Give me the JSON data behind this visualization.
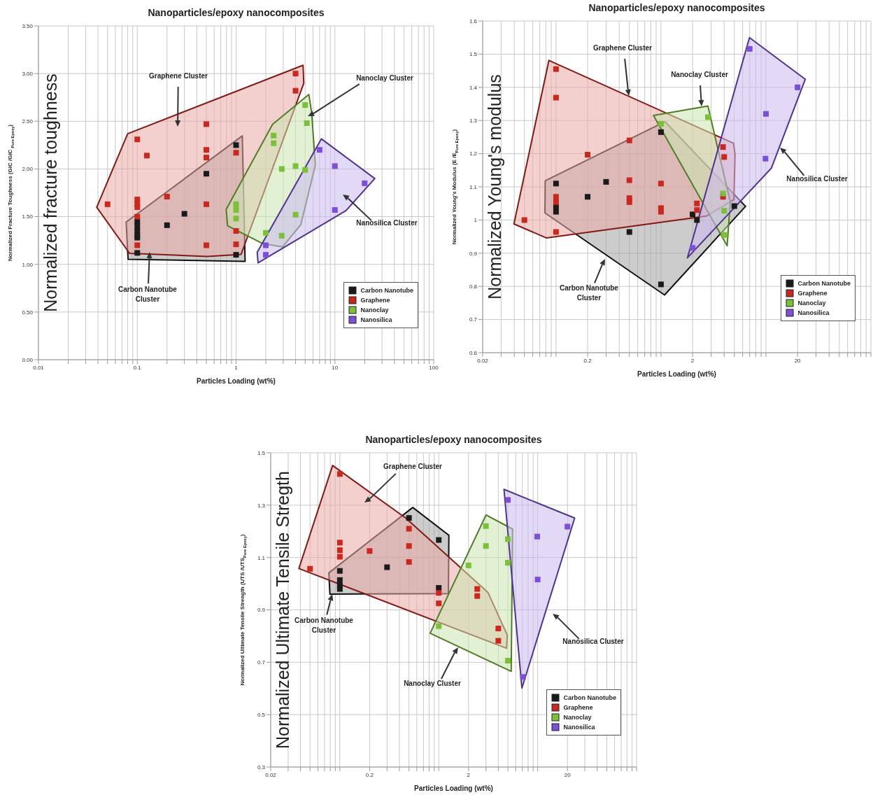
{
  "chart_data": [
    {
      "type": "scatter",
      "title": "Nanoparticles/epoxy nanocomposites",
      "xlabel": "Particles Loading (wt%)",
      "ylabel": "Normalized Fracture Toughness (GIC /GIC $_{Pure Epoxy}$)",
      "log": "x",
      "grid": true,
      "legend": "bottom right",
      "marker": "square",
      "xlim": [
        0.01,
        100
      ],
      "xticks": [
        {
          "value": 0.01,
          "label": "0.01"
        },
        {
          "value": 0.02,
          "label": null
        },
        {
          "value": 0.03,
          "label": null
        },
        {
          "value": 0.04,
          "label": null
        },
        {
          "value": 0.05,
          "label": null
        },
        {
          "value": 0.06,
          "label": null
        },
        {
          "value": 0.07,
          "label": null
        },
        {
          "value": 0.08,
          "label": null
        },
        {
          "value": 0.09,
          "label": null
        },
        {
          "value": 0.1,
          "label": "0.1"
        },
        {
          "value": 0.2,
          "label": null
        },
        {
          "value": 0.3,
          "label": null
        },
        {
          "value": 0.4,
          "label": null
        },
        {
          "value": 0.5,
          "label": null
        },
        {
          "value": 0.6,
          "label": null
        },
        {
          "value": 0.7,
          "label": null
        },
        {
          "value": 0.8,
          "label": null
        },
        {
          "value": 0.9,
          "label": null
        },
        1,
        {
          "value": 2,
          "label": null
        },
        {
          "value": 3,
          "label": null
        },
        {
          "value": 4,
          "label": null
        },
        {
          "value": 5,
          "label": null
        },
        {
          "value": 6,
          "label": null
        },
        {
          "value": 7,
          "label": null
        },
        {
          "value": 8,
          "label": null
        },
        {
          "value": 9,
          "label": null
        },
        10,
        {
          "value": 20,
          "label": null
        },
        {
          "value": 30,
          "label": null
        },
        {
          "value": 40,
          "label": null
        },
        {
          "value": 50,
          "label": null
        },
        {
          "value": 60,
          "label": null
        },
        {
          "value": 70,
          "label": null
        },
        {
          "value": 80,
          "label": null
        },
        {
          "value": 90,
          "label": null
        },
        100
      ],
      "ylim": [
        0,
        3.5
      ],
      "yticks": [
        {
          "value": 0,
          "label": "0.00"
        },
        {
          "value": 0.5,
          "label": "0.50"
        },
        {
          "value": 1,
          "label": "1.00"
        },
        {
          "value": 1.5,
          "label": "1.50"
        },
        {
          "value": 2,
          "label": "2.00"
        },
        {
          "value": 2.5,
          "label": "2.50"
        },
        {
          "value": 3,
          "label": "3.00"
        },
        {
          "value": 3.5,
          "label": "3.50"
        }
      ],
      "annotations": [
        "Normalized fracture toughness",
        "Graphene Cluster",
        "Nanoclay Cluster",
        "Nanosilica Cluster",
        "Carbon Nanotube\nCluster"
      ],
      "series": [
        {
          "name": "Carbon Nanotube",
          "color": "#1a1a1a",
          "x": [
            0.1,
            0.1,
            0.1,
            0.1,
            0.1,
            0.1,
            0.3,
            0.2,
            0.5,
            1,
            1
          ],
          "values": [
            1.12,
            1.28,
            1.3,
            1.35,
            1.4,
            1.45,
            1.53,
            1.41,
            1.95,
            2.25,
            1.1
          ]
        },
        {
          "name": "Graphene",
          "color": "#c8281e",
          "x": [
            0.05,
            0.1,
            0.1,
            0.1,
            0.1,
            0.1,
            0.1,
            0.125,
            0.2,
            0.5,
            0.5,
            0.5,
            0.5,
            0.5,
            1,
            1,
            1,
            4,
            4
          ],
          "values": [
            1.63,
            2.31,
            1.68,
            1.63,
            1.6,
            1.5,
            1.2,
            2.14,
            1.71,
            2.2,
            2.12,
            1.63,
            1.2,
            2.47,
            1.21,
            2.17,
            1.35,
            3.0,
            2.82
          ]
        },
        {
          "name": "Nanoclay",
          "color": "#7cbf3a",
          "x": [
            5,
            5.2,
            2.4,
            2.4,
            4,
            5,
            1,
            1,
            1,
            2,
            2.9,
            4,
            2.9
          ],
          "values": [
            2.67,
            2.48,
            2.35,
            2.27,
            2.03,
            1.99,
            1.57,
            1.48,
            1.63,
            1.33,
            1.3,
            1.52,
            2.0
          ]
        },
        {
          "name": "Nanosilica",
          "color": "#7b4fd6",
          "x": [
            7,
            10,
            20,
            10,
            2,
            2
          ],
          "values": [
            2.2,
            2.03,
            1.85,
            1.57,
            1.2,
            1.1
          ]
        }
      ]
    },
    {
      "type": "scatter",
      "title": "Nanoparticles/epoxy nanocomposites",
      "xlabel": "Particles Loading (wt%)",
      "ylabel": "Normalized Young's Modulus (E /E$_{Pure Epoxy}$)",
      "log": "x",
      "grid": true,
      "legend": "bottom right",
      "marker": "square",
      "xlim": [
        0.02,
        100
      ],
      "xticks": [
        0.02,
        {
          "value": 0.03,
          "label": null
        },
        {
          "value": 0.04,
          "label": null
        },
        {
          "value": 0.05,
          "label": null
        },
        {
          "value": 0.06,
          "label": null
        },
        {
          "value": 0.07,
          "label": null
        },
        {
          "value": 0.08,
          "label": null
        },
        {
          "value": 0.09,
          "label": null
        },
        {
          "value": 0.1,
          "label": null
        },
        0.2,
        {
          "value": 0.3,
          "label": null
        },
        {
          "value": 0.4,
          "label": null
        },
        {
          "value": 0.5,
          "label": null
        },
        {
          "value": 0.6,
          "label": null
        },
        {
          "value": 0.7,
          "label": null
        },
        {
          "value": 0.8,
          "label": null
        },
        {
          "value": 0.9,
          "label": null
        },
        {
          "value": 1,
          "label": null
        },
        2,
        {
          "value": 3,
          "label": null
        },
        {
          "value": 4,
          "label": null
        },
        {
          "value": 5,
          "label": null
        },
        {
          "value": 6,
          "label": null
        },
        {
          "value": 7,
          "label": null
        },
        {
          "value": 8,
          "label": null
        },
        {
          "value": 9,
          "label": null
        },
        {
          "value": 10,
          "label": null
        },
        20,
        {
          "value": 30,
          "label": null
        },
        {
          "value": 40,
          "label": null
        },
        {
          "value": 50,
          "label": null
        },
        {
          "value": 60,
          "label": null
        },
        {
          "value": 70,
          "label": null
        },
        {
          "value": 80,
          "label": null
        },
        {
          "value": 90,
          "label": null
        },
        {
          "value": 100,
          "label": null
        }
      ],
      "ylim": [
        0.6,
        1.6
      ],
      "yticks": [
        0.6,
        0.7,
        0.8,
        0.9,
        1,
        1.1,
        1.2,
        1.3,
        1.4,
        1.5,
        1.6
      ],
      "annotations": [
        "Normalized Young's modulus",
        "Graphene Cluster",
        "Nanoclay Cluster",
        "Nanosilica Cluster",
        "Carbon Nanotube\nCluster"
      ],
      "series": [
        {
          "name": "Carbon Nanotube",
          "color": "#1a1a1a",
          "x": [
            0.1,
            0.1,
            0.1,
            0.2,
            0.3,
            1,
            0.5,
            1,
            2.2,
            2,
            5
          ],
          "values": [
            1.11,
            1.025,
            1.04,
            1.07,
            1.115,
            1.265,
            0.964,
            0.806,
            1.0,
            1.017,
            1.042
          ]
        },
        {
          "name": "Graphene",
          "color": "#c8281e",
          "x": [
            0.05,
            0.1,
            0.1,
            0.1,
            0.1,
            0.1,
            0.2,
            0.5,
            0.5,
            0.5,
            0.5,
            1,
            1,
            1,
            3.9,
            3.9,
            4,
            2.2,
            2.2
          ],
          "values": [
            1.0,
            1.455,
            1.369,
            1.07,
            1.054,
            0.964,
            1.197,
            1.24,
            1.12,
            1.066,
            1.054,
            1.11,
            1.036,
            1.025,
            1.22,
            1.07,
            1.19,
            1.05,
            1.03
          ]
        },
        {
          "name": "Nanoclay",
          "color": "#7cbf3a",
          "x": [
            1,
            2.8,
            4,
            3.9,
            4
          ],
          "values": [
            1.29,
            1.31,
            1.028,
            1.08,
            0.955
          ]
        },
        {
          "name": "Nanosilica",
          "color": "#7b4fd6",
          "x": [
            7,
            20,
            9.9,
            10,
            2
          ],
          "values": [
            1.516,
            1.4,
            1.185,
            1.32,
            0.916
          ]
        }
      ]
    },
    {
      "type": "scatter",
      "title": "Nanoparticles/epoxy nanocomposites",
      "xlabel": "Particles Loading (wt%)",
      "ylabel": "Normalized Ultimate Tensile Strength (UTS /UTS$_{Pure Epoxy}$)",
      "log": "x",
      "grid": true,
      "legend": "bottom right",
      "marker": "square",
      "xlim": [
        0.02,
        100
      ],
      "xticks": [
        0.02,
        {
          "value": 0.03,
          "label": null
        },
        {
          "value": 0.04,
          "label": null
        },
        {
          "value": 0.05,
          "label": null
        },
        {
          "value": 0.06,
          "label": null
        },
        {
          "value": 0.07,
          "label": null
        },
        {
          "value": 0.08,
          "label": null
        },
        {
          "value": 0.09,
          "label": null
        },
        {
          "value": 0.1,
          "label": null
        },
        0.2,
        {
          "value": 0.3,
          "label": null
        },
        {
          "value": 0.4,
          "label": null
        },
        {
          "value": 0.5,
          "label": null
        },
        {
          "value": 0.6,
          "label": null
        },
        {
          "value": 0.7,
          "label": null
        },
        {
          "value": 0.8,
          "label": null
        },
        {
          "value": 0.9,
          "label": null
        },
        {
          "value": 1,
          "label": null
        },
        2,
        {
          "value": 3,
          "label": null
        },
        {
          "value": 4,
          "label": null
        },
        {
          "value": 5,
          "label": null
        },
        {
          "value": 6,
          "label": null
        },
        {
          "value": 7,
          "label": null
        },
        {
          "value": 8,
          "label": null
        },
        {
          "value": 9,
          "label": null
        },
        {
          "value": 10,
          "label": null
        },
        20,
        {
          "value": 30,
          "label": null
        },
        {
          "value": 40,
          "label": null
        },
        {
          "value": 50,
          "label": null
        },
        {
          "value": 60,
          "label": null
        },
        {
          "value": 70,
          "label": null
        },
        {
          "value": 80,
          "label": null
        },
        {
          "value": 90,
          "label": null
        },
        {
          "value": 100,
          "label": null
        }
      ],
      "ylim": [
        0.3,
        1.5
      ],
      "yticks": [
        0.3,
        0.5,
        0.7,
        0.9,
        1.1,
        1.3,
        1.5
      ],
      "annotations": [
        "Normalized Ultimate Tensile Stregth",
        "Graphene Cluster",
        "Nanoclay Cluster",
        "Nanosilica Cluster",
        "Carbon Nanotube\nCluster"
      ],
      "series": [
        {
          "name": "Carbon Nanotube",
          "color": "#1a1a1a",
          "x": [
            0.1,
            0.1,
            0.1,
            0.1,
            0.3,
            0.5,
            1,
            1
          ],
          "values": [
            1.049,
            1.014,
            0.994,
            0.98,
            1.063,
            1.251,
            1.167,
            0.984
          ]
        },
        {
          "name": "Graphene",
          "color": "#c8281e",
          "x": [
            0.05,
            0.1,
            0.1,
            0.1,
            0.1,
            0.2,
            0.5,
            0.5,
            0.5,
            1,
            1,
            2.45,
            2.45,
            4,
            4
          ],
          "values": [
            1.057,
            1.419,
            1.157,
            1.128,
            1.103,
            1.125,
            1.144,
            1.083,
            1.21,
            0.965,
            0.925,
            0.98,
            0.953,
            0.829,
            0.782
          ]
        },
        {
          "name": "Nanoclay",
          "color": "#7cbf3a",
          "x": [
            1,
            3,
            5,
            2,
            3,
            5,
            5
          ],
          "values": [
            0.838,
            1.144,
            0.706,
            1.07,
            1.22,
            1.17,
            1.08
          ]
        },
        {
          "name": "Nanosilica",
          "color": "#7b4fd6",
          "x": [
            5,
            9.9,
            20,
            10,
            7.1
          ],
          "values": [
            1.32,
            1.18,
            1.218,
            1.016,
            0.644
          ]
        }
      ]
    }
  ]
}
